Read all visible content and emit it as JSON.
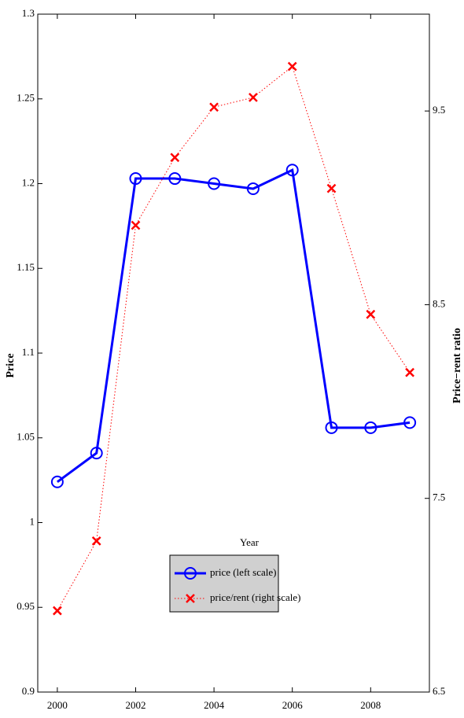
{
  "chart_data": {
    "type": "line",
    "x_label": "Year",
    "y_label": "Price",
    "y2_label": "Price−rent ratio",
    "x": [
      2000,
      2001,
      2002,
      2003,
      2004,
      2005,
      2006,
      2007,
      2008,
      2009
    ],
    "xlim": [
      1999.5,
      2009.5
    ],
    "xticks": [
      2000,
      2002,
      2004,
      2006,
      2008
    ],
    "ylim": [
      0.9,
      1.3
    ],
    "yticks": [
      0.9,
      0.95,
      1,
      1.05,
      1.1,
      1.15,
      1.2,
      1.25,
      1.3
    ],
    "y2lim": [
      6.5,
      10
    ],
    "y2ticks": [
      6.5,
      7.5,
      8.5,
      9.5
    ],
    "grid": false,
    "series": [
      {
        "name": "price (left scale)",
        "color": "#0000ff",
        "marker": "circle",
        "line": "solid",
        "values": [
          1.024,
          1.041,
          1.203,
          1.203,
          1.2,
          1.197,
          1.208,
          1.056,
          1.056,
          1.059
        ]
      },
      {
        "name": "price/rent (right scale)",
        "color": "#ff0000",
        "marker": "x",
        "line": "dotted",
        "axis": "y2",
        "values": [
          6.92,
          7.28,
          8.91,
          9.26,
          9.52,
          9.57,
          9.73,
          9.1,
          8.45,
          8.15
        ]
      }
    ]
  }
}
